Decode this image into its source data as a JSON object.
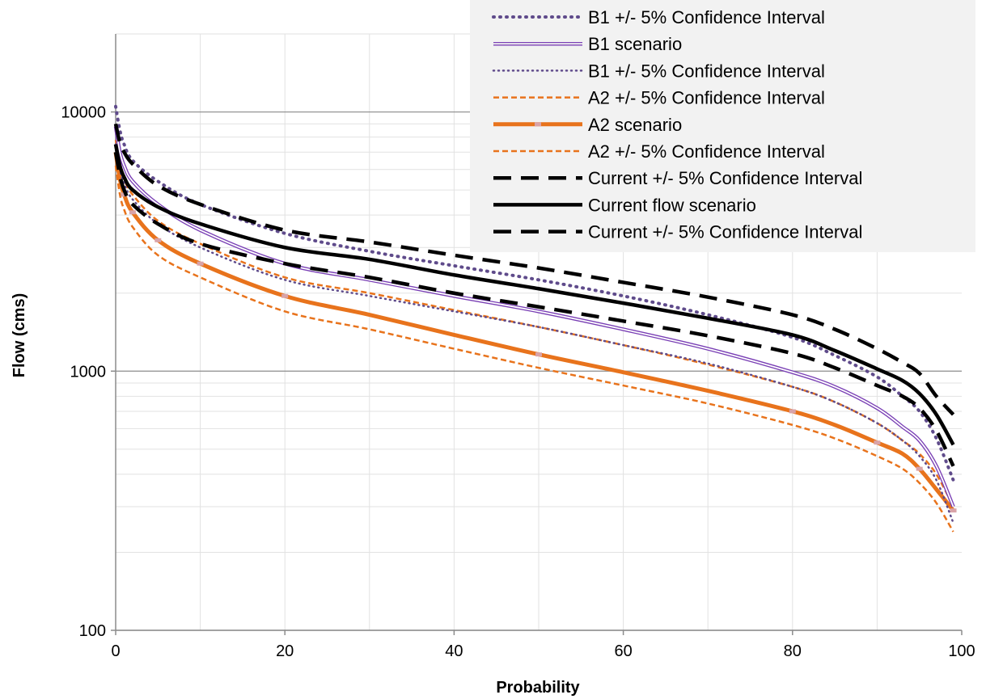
{
  "chart_data": {
    "type": "line",
    "title": "",
    "xlabel": "Probability",
    "ylabel": "Flow (cms)",
    "xlim": [
      0,
      100
    ],
    "ylim": [
      100,
      20000
    ],
    "y_scale": "log",
    "x_ticks": [
      "0",
      "20",
      "40",
      "60",
      "80",
      "100"
    ],
    "y_ticks": [
      "100",
      "1000",
      "10000"
    ],
    "grid": true,
    "legend_position": "top-right",
    "series": [
      {
        "name": "B1 +/- 5% Confidence Interval",
        "color": "#5f4b8b",
        "style": "dotted-bold",
        "points": [
          [
            0,
            10500
          ],
          [
            0.5,
            8500
          ],
          [
            1,
            7500
          ],
          [
            2,
            6500
          ],
          [
            5,
            5400
          ],
          [
            10,
            4400
          ],
          [
            20,
            3400
          ],
          [
            30,
            2900
          ],
          [
            40,
            2550
          ],
          [
            50,
            2250
          ],
          [
            60,
            1950
          ],
          [
            70,
            1650
          ],
          [
            80,
            1350
          ],
          [
            85,
            1150
          ],
          [
            90,
            950
          ],
          [
            93,
            800
          ],
          [
            95,
            700
          ],
          [
            97,
            550
          ],
          [
            99,
            380
          ]
        ]
      },
      {
        "name": "B1 scenario",
        "color": "#7a40b5",
        "style": "double",
        "points": [
          [
            0,
            8800
          ],
          [
            0.5,
            7000
          ],
          [
            1,
            6200
          ],
          [
            2,
            5400
          ],
          [
            5,
            4400
          ],
          [
            10,
            3500
          ],
          [
            20,
            2600
          ],
          [
            30,
            2250
          ],
          [
            40,
            1950
          ],
          [
            50,
            1700
          ],
          [
            60,
            1450
          ],
          [
            70,
            1220
          ],
          [
            80,
            990
          ],
          [
            85,
            870
          ],
          [
            90,
            720
          ],
          [
            93,
            610
          ],
          [
            95,
            540
          ],
          [
            97,
            430
          ],
          [
            99,
            300
          ]
        ]
      },
      {
        "name": "B1 +/- 5% Confidence Interval",
        "color": "#5f4b8b",
        "style": "dotted-thin",
        "points": [
          [
            0,
            7500
          ],
          [
            0.5,
            6000
          ],
          [
            1,
            5300
          ],
          [
            2,
            4600
          ],
          [
            5,
            3700
          ],
          [
            10,
            3000
          ],
          [
            20,
            2250
          ],
          [
            30,
            1950
          ],
          [
            40,
            1700
          ],
          [
            50,
            1480
          ],
          [
            60,
            1260
          ],
          [
            70,
            1070
          ],
          [
            80,
            870
          ],
          [
            85,
            760
          ],
          [
            90,
            630
          ],
          [
            93,
            540
          ],
          [
            95,
            470
          ],
          [
            97,
            380
          ],
          [
            99,
            260
          ]
        ]
      },
      {
        "name": "A2 +/- 5% Confidence Interval",
        "color": "#e8731c",
        "style": "dashed-small",
        "points": [
          [
            0,
            7800
          ],
          [
            0.5,
            6300
          ],
          [
            1,
            5500
          ],
          [
            2,
            4800
          ],
          [
            5,
            3800
          ],
          [
            10,
            3100
          ],
          [
            20,
            2300
          ],
          [
            30,
            2000
          ],
          [
            40,
            1720
          ],
          [
            50,
            1480
          ],
          [
            60,
            1260
          ],
          [
            70,
            1060
          ],
          [
            80,
            870
          ],
          [
            85,
            760
          ],
          [
            90,
            630
          ],
          [
            93,
            540
          ],
          [
            95,
            480
          ],
          [
            97,
            400
          ],
          [
            99,
            300
          ]
        ]
      },
      {
        "name": "A2 scenario",
        "color": "#e8731c",
        "style": "thick",
        "points": [
          [
            0,
            7000
          ],
          [
            0.5,
            5500
          ],
          [
            1,
            4800
          ],
          [
            2,
            4100
          ],
          [
            5,
            3200
          ],
          [
            10,
            2600
          ],
          [
            20,
            1950
          ],
          [
            30,
            1650
          ],
          [
            40,
            1380
          ],
          [
            50,
            1160
          ],
          [
            60,
            990
          ],
          [
            70,
            840
          ],
          [
            80,
            700
          ],
          [
            85,
            620
          ],
          [
            90,
            530
          ],
          [
            93,
            480
          ],
          [
            95,
            420
          ],
          [
            97,
            350
          ],
          [
            99,
            290
          ]
        ]
      },
      {
        "name": "A2 +/- 5% Confidence Interval",
        "color": "#e8731c",
        "style": "dashed-small",
        "points": [
          [
            0,
            6200
          ],
          [
            0.5,
            4800
          ],
          [
            1,
            4200
          ],
          [
            2,
            3600
          ],
          [
            5,
            2800
          ],
          [
            10,
            2300
          ],
          [
            20,
            1700
          ],
          [
            30,
            1450
          ],
          [
            40,
            1220
          ],
          [
            50,
            1030
          ],
          [
            60,
            880
          ],
          [
            70,
            750
          ],
          [
            80,
            620
          ],
          [
            85,
            550
          ],
          [
            90,
            470
          ],
          [
            93,
            420
          ],
          [
            95,
            370
          ],
          [
            97,
            310
          ],
          [
            99,
            240
          ]
        ]
      },
      {
        "name": "Current +/- 5% Confidence Interval",
        "color": "#000000",
        "style": "dashed-large",
        "points": [
          [
            0,
            9000
          ],
          [
            0.5,
            7600
          ],
          [
            1,
            7000
          ],
          [
            2,
            6300
          ],
          [
            5,
            5200
          ],
          [
            10,
            4400
          ],
          [
            20,
            3500
          ],
          [
            30,
            3150
          ],
          [
            40,
            2800
          ],
          [
            50,
            2500
          ],
          [
            60,
            2200
          ],
          [
            70,
            1930
          ],
          [
            80,
            1650
          ],
          [
            85,
            1450
          ],
          [
            90,
            1220
          ],
          [
            93,
            1080
          ],
          [
            95,
            980
          ],
          [
            97,
            800
          ],
          [
            99,
            680
          ]
        ]
      },
      {
        "name": "Current flow scenario",
        "color": "#000000",
        "style": "solid-bold",
        "points": [
          [
            0,
            7500
          ],
          [
            0.5,
            6200
          ],
          [
            1,
            5600
          ],
          [
            2,
            5000
          ],
          [
            5,
            4300
          ],
          [
            10,
            3700
          ],
          [
            20,
            3000
          ],
          [
            30,
            2700
          ],
          [
            40,
            2350
          ],
          [
            50,
            2080
          ],
          [
            60,
            1830
          ],
          [
            70,
            1600
          ],
          [
            80,
            1380
          ],
          [
            85,
            1200
          ],
          [
            90,
            1020
          ],
          [
            93,
            920
          ],
          [
            95,
            820
          ],
          [
            97,
            680
          ],
          [
            99,
            520
          ]
        ]
      },
      {
        "name": "Current +/- 5% Confidence Interval",
        "color": "#000000",
        "style": "dashed-large",
        "points": [
          [
            0,
            7000
          ],
          [
            0.5,
            5700
          ],
          [
            1,
            5000
          ],
          [
            2,
            4400
          ],
          [
            5,
            3700
          ],
          [
            10,
            3100
          ],
          [
            20,
            2600
          ],
          [
            30,
            2300
          ],
          [
            40,
            2000
          ],
          [
            50,
            1770
          ],
          [
            60,
            1560
          ],
          [
            70,
            1370
          ],
          [
            80,
            1170
          ],
          [
            85,
            1030
          ],
          [
            90,
            880
          ],
          [
            93,
            800
          ],
          [
            95,
            720
          ],
          [
            97,
            590
          ],
          [
            99,
            430
          ]
        ]
      }
    ]
  }
}
